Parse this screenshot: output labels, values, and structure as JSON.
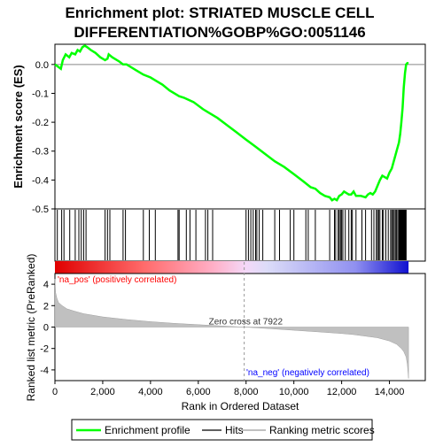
{
  "chart_data": {
    "type": "line",
    "title_line1": "Enrichment plot: STRIATED MUSCLE CELL",
    "title_line2": "DIFFERENTIATION%GOBP%GO:0051146",
    "es_panel": {
      "ylabel": "Enrichment score (ES)",
      "ylim": [
        -0.5,
        0.07
      ],
      "yticks": [
        {
          "v": 0.0,
          "label": "0.0"
        },
        {
          "v": -0.1,
          "label": "-0.1"
        },
        {
          "v": -0.2,
          "label": "-0.2"
        },
        {
          "v": -0.3,
          "label": "-0.3"
        },
        {
          "v": -0.4,
          "label": "-0.4"
        },
        {
          "v": -0.5,
          "label": "-0.5"
        }
      ],
      "series": [
        {
          "name": "Enrichment profile",
          "color": "#00ff00",
          "x": [
            0,
            250,
            330,
            450,
            600,
            700,
            850,
            950,
            1050,
            1150,
            1250,
            1350,
            1500,
            1700,
            1900,
            2100,
            2200,
            2250,
            2400,
            2700,
            2850,
            3000,
            3100,
            3400,
            3700,
            4000,
            4200,
            4500,
            4800,
            5100,
            5200,
            5400,
            5800,
            6200,
            6400,
            6800,
            7200,
            7600,
            8000,
            8400,
            8800,
            9200,
            9600,
            10000,
            10400,
            10700,
            10900,
            11100,
            11300,
            11500,
            11600,
            11700,
            11800,
            11900,
            12000,
            12100,
            12200,
            12300,
            12400,
            12500,
            12600,
            12800,
            13000,
            13100,
            13200,
            13300,
            13400,
            13500,
            13600,
            13700,
            13800,
            13900,
            14000,
            14100,
            14200,
            14300,
            14400,
            14450,
            14500,
            14550,
            14600,
            14650,
            14700,
            14750,
            14800
          ],
          "y": [
            0.0,
            -0.015,
            0.015,
            0.035,
            0.025,
            0.04,
            0.035,
            0.05,
            0.045,
            0.06,
            0.065,
            0.06,
            0.05,
            0.04,
            0.025,
            0.015,
            0.02,
            0.035,
            0.025,
            0.01,
            0.0,
            0.0,
            -0.005,
            -0.02,
            -0.035,
            -0.045,
            -0.055,
            -0.07,
            -0.09,
            -0.105,
            -0.11,
            -0.115,
            -0.13,
            -0.155,
            -0.165,
            -0.185,
            -0.21,
            -0.235,
            -0.26,
            -0.285,
            -0.31,
            -0.335,
            -0.355,
            -0.38,
            -0.405,
            -0.425,
            -0.43,
            -0.445,
            -0.455,
            -0.46,
            -0.47,
            -0.465,
            -0.47,
            -0.455,
            -0.45,
            -0.44,
            -0.445,
            -0.45,
            -0.45,
            -0.44,
            -0.455,
            -0.455,
            -0.46,
            -0.45,
            -0.445,
            -0.45,
            -0.44,
            -0.42,
            -0.4,
            -0.385,
            -0.39,
            -0.395,
            -0.375,
            -0.36,
            -0.33,
            -0.3,
            -0.27,
            -0.24,
            -0.2,
            -0.15,
            -0.08,
            -0.03,
            0.0,
            0.005,
            0.005
          ]
        }
      ]
    },
    "hits": [
      100,
      280,
      380,
      620,
      850,
      1000,
      1100,
      1200,
      1300,
      2100,
      2200,
      2300,
      2850,
      2950,
      3700,
      3950,
      4200,
      5150,
      5200,
      5500,
      5650,
      5900,
      6300,
      6400,
      6600,
      8000,
      8100,
      8200,
      8300,
      8400,
      8450,
      8550,
      8700,
      9200,
      9400,
      9850,
      10000,
      10500,
      10600,
      10900,
      11500,
      11700,
      11750,
      11850,
      11900,
      11950,
      12000,
      12050,
      12150,
      12300,
      12400,
      12450,
      12600,
      12850,
      13000,
      13250,
      13350,
      13450,
      13500,
      13550,
      13600,
      13700,
      13750,
      13850,
      13950,
      14050,
      14100,
      14150,
      14200,
      14250,
      14300,
      14350,
      14400,
      14420,
      14440,
      14460,
      14480,
      14500,
      14520,
      14540,
      14560,
      14580,
      14600,
      14620,
      14640,
      14660,
      14680,
      14700
    ],
    "metric_panel": {
      "ylabel": "Ranked list metric (PreRanked)",
      "ylim": [
        -5,
        5
      ],
      "yticks": [
        {
          "v": 4,
          "label": "4"
        },
        {
          "v": 2,
          "label": "2"
        },
        {
          "v": 0,
          "label": "0"
        },
        {
          "v": -2,
          "label": "-2"
        },
        {
          "v": -4,
          "label": "-4"
        }
      ],
      "x": [
        0,
        30,
        80,
        150,
        300,
        500,
        800,
        1200,
        2000,
        3000,
        4000,
        5000,
        6000,
        7000,
        7922,
        9000,
        10000,
        11000,
        12000,
        12500,
        13000,
        13500,
        14000,
        14300,
        14500,
        14600,
        14700,
        14750,
        14800
      ],
      "values": [
        4.5,
        3.2,
        2.7,
        2.3,
        2.0,
        1.7,
        1.5,
        1.25,
        0.95,
        0.7,
        0.5,
        0.35,
        0.22,
        0.1,
        0.0,
        -0.15,
        -0.3,
        -0.45,
        -0.6,
        -0.7,
        -0.85,
        -1.0,
        -1.3,
        -1.6,
        -2.0,
        -2.3,
        -2.8,
        -3.5,
        -4.8
      ],
      "pos_label": "'na_pos' (positively correlated)",
      "neg_label": "'na_neg' (negatively correlated)",
      "zero_cross_label": "Zero cross at 7922",
      "zero_cross": 7922
    },
    "xlabel": "Rank in Ordered Dataset",
    "xlim": [
      0,
      15500
    ],
    "xticks": [
      {
        "v": 0,
        "label": "0"
      },
      {
        "v": 2000,
        "label": "2,000"
      },
      {
        "v": 4000,
        "label": "4,000"
      },
      {
        "v": 6000,
        "label": "6,000"
      },
      {
        "v": 8000,
        "label": "8,000"
      },
      {
        "v": 10000,
        "label": "10,000"
      },
      {
        "v": 12000,
        "label": "12,000"
      },
      {
        "v": 14000,
        "label": "14,000"
      }
    ],
    "legend": {
      "placement": "bottom",
      "items": [
        {
          "label": "Enrichment profile",
          "color": "#00ff00"
        },
        {
          "label": "Hits",
          "color": "#606060"
        },
        {
          "label": "Ranking metric scores",
          "color": "#c0c0c0"
        }
      ]
    },
    "colors": {
      "pos": "#ff0000",
      "neg": "#0000ff",
      "metric_fill": "#c0c0c0"
    }
  }
}
